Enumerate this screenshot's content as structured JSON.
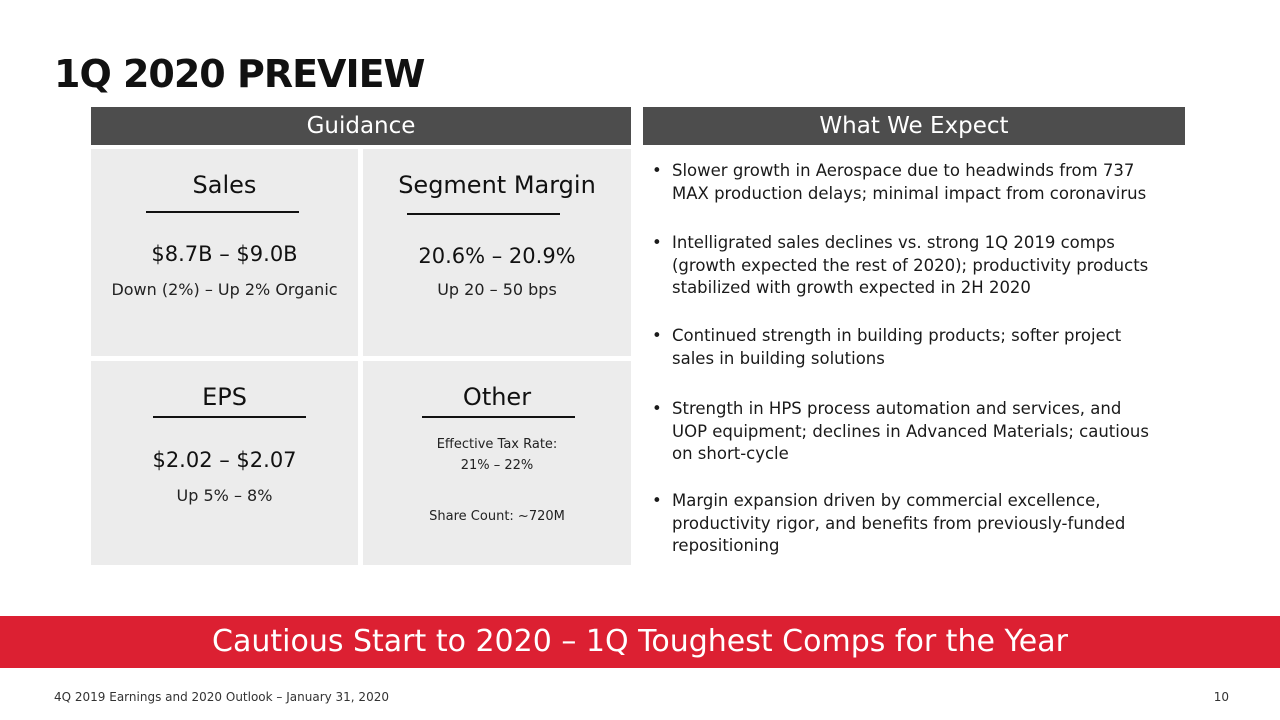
{
  "title": "1Q 2020 PREVIEW",
  "guidance": {
    "header": "Guidance",
    "sales": {
      "label": "Sales",
      "value": "$8.7B – $9.0B",
      "note": "Down (2%) – Up 2% Organic"
    },
    "segment_margin": {
      "label": "Segment Margin",
      "value": "20.6% – 20.9%",
      "note": "Up 20 – 50 bps"
    },
    "eps": {
      "label": "EPS",
      "value": "$2.02 – $2.07",
      "note": "Up 5% – 8%"
    },
    "other": {
      "label": "Other",
      "tax_rate_label": "Effective Tax Rate:",
      "tax_rate_value": "21% – 22%",
      "share_count": "Share Count: ~720M"
    }
  },
  "expect": {
    "header": "What We Expect",
    "bullet_glyph": "•",
    "items": [
      {
        "line1": "Slower growth in Aerospace due to headwinds from 737",
        "line2": "MAX production delays; minimal impact from coronavirus",
        "line3": ""
      },
      {
        "line1": "Intelligrated sales declines vs. strong 1Q 2019 comps",
        "line2": "(growth expected the rest of 2020); productivity products",
        "line3": "stabilized with growth expected in 2H 2020"
      },
      {
        "line1": "Continued strength in building products; softer project",
        "line2": "sales in building solutions",
        "line3": ""
      },
      {
        "line1": "Strength in HPS process automation and services, and",
        "line2": "UOP equipment; declines in Advanced Materials; cautious",
        "line3": "on short-cycle"
      },
      {
        "line1": "Margin expansion driven by commercial excellence,",
        "line2": "productivity rigor, and benefits from previously-funded",
        "line3": "repositioning"
      }
    ]
  },
  "banner": "Cautious Start to 2020 – 1Q Toughest Comps for the Year",
  "footer": "4Q 2019 Earnings and 2020 Outlook – January 31, 2020",
  "page_number": "10",
  "colors": {
    "header_bg": "#4d4d4d",
    "cell_bg": "#ececec",
    "banner_bg": "#dc2032"
  }
}
